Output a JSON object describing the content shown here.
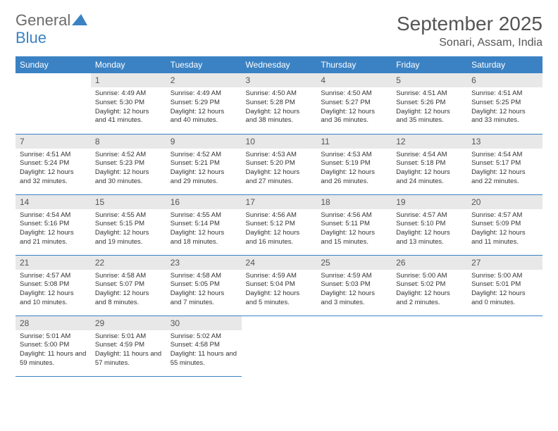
{
  "logo": {
    "general": "General",
    "blue": "Blue"
  },
  "header": {
    "title": "September 2025",
    "location": "Sonari, Assam, India"
  },
  "colors": {
    "accent": "#3b82c4",
    "daynum_bg": "#e8e8e8",
    "text": "#333333"
  },
  "weekdays": [
    "Sunday",
    "Monday",
    "Tuesday",
    "Wednesday",
    "Thursday",
    "Friday",
    "Saturday"
  ],
  "grid": {
    "rows": 5,
    "cols": 7,
    "start_weekday": 1,
    "days_in_month": 30
  },
  "days": {
    "1": {
      "sunrise": "4:49 AM",
      "sunset": "5:30 PM",
      "daylight": "12 hours and 41 minutes."
    },
    "2": {
      "sunrise": "4:49 AM",
      "sunset": "5:29 PM",
      "daylight": "12 hours and 40 minutes."
    },
    "3": {
      "sunrise": "4:50 AM",
      "sunset": "5:28 PM",
      "daylight": "12 hours and 38 minutes."
    },
    "4": {
      "sunrise": "4:50 AM",
      "sunset": "5:27 PM",
      "daylight": "12 hours and 36 minutes."
    },
    "5": {
      "sunrise": "4:51 AM",
      "sunset": "5:26 PM",
      "daylight": "12 hours and 35 minutes."
    },
    "6": {
      "sunrise": "4:51 AM",
      "sunset": "5:25 PM",
      "daylight": "12 hours and 33 minutes."
    },
    "7": {
      "sunrise": "4:51 AM",
      "sunset": "5:24 PM",
      "daylight": "12 hours and 32 minutes."
    },
    "8": {
      "sunrise": "4:52 AM",
      "sunset": "5:23 PM",
      "daylight": "12 hours and 30 minutes."
    },
    "9": {
      "sunrise": "4:52 AM",
      "sunset": "5:21 PM",
      "daylight": "12 hours and 29 minutes."
    },
    "10": {
      "sunrise": "4:53 AM",
      "sunset": "5:20 PM",
      "daylight": "12 hours and 27 minutes."
    },
    "11": {
      "sunrise": "4:53 AM",
      "sunset": "5:19 PM",
      "daylight": "12 hours and 26 minutes."
    },
    "12": {
      "sunrise": "4:54 AM",
      "sunset": "5:18 PM",
      "daylight": "12 hours and 24 minutes."
    },
    "13": {
      "sunrise": "4:54 AM",
      "sunset": "5:17 PM",
      "daylight": "12 hours and 22 minutes."
    },
    "14": {
      "sunrise": "4:54 AM",
      "sunset": "5:16 PM",
      "daylight": "12 hours and 21 minutes."
    },
    "15": {
      "sunrise": "4:55 AM",
      "sunset": "5:15 PM",
      "daylight": "12 hours and 19 minutes."
    },
    "16": {
      "sunrise": "4:55 AM",
      "sunset": "5:14 PM",
      "daylight": "12 hours and 18 minutes."
    },
    "17": {
      "sunrise": "4:56 AM",
      "sunset": "5:12 PM",
      "daylight": "12 hours and 16 minutes."
    },
    "18": {
      "sunrise": "4:56 AM",
      "sunset": "5:11 PM",
      "daylight": "12 hours and 15 minutes."
    },
    "19": {
      "sunrise": "4:57 AM",
      "sunset": "5:10 PM",
      "daylight": "12 hours and 13 minutes."
    },
    "20": {
      "sunrise": "4:57 AM",
      "sunset": "5:09 PM",
      "daylight": "12 hours and 11 minutes."
    },
    "21": {
      "sunrise": "4:57 AM",
      "sunset": "5:08 PM",
      "daylight": "12 hours and 10 minutes."
    },
    "22": {
      "sunrise": "4:58 AM",
      "sunset": "5:07 PM",
      "daylight": "12 hours and 8 minutes."
    },
    "23": {
      "sunrise": "4:58 AM",
      "sunset": "5:05 PM",
      "daylight": "12 hours and 7 minutes."
    },
    "24": {
      "sunrise": "4:59 AM",
      "sunset": "5:04 PM",
      "daylight": "12 hours and 5 minutes."
    },
    "25": {
      "sunrise": "4:59 AM",
      "sunset": "5:03 PM",
      "daylight": "12 hours and 3 minutes."
    },
    "26": {
      "sunrise": "5:00 AM",
      "sunset": "5:02 PM",
      "daylight": "12 hours and 2 minutes."
    },
    "27": {
      "sunrise": "5:00 AM",
      "sunset": "5:01 PM",
      "daylight": "12 hours and 0 minutes."
    },
    "28": {
      "sunrise": "5:01 AM",
      "sunset": "5:00 PM",
      "daylight": "11 hours and 59 minutes."
    },
    "29": {
      "sunrise": "5:01 AM",
      "sunset": "4:59 PM",
      "daylight": "11 hours and 57 minutes."
    },
    "30": {
      "sunrise": "5:02 AM",
      "sunset": "4:58 PM",
      "daylight": "11 hours and 55 minutes."
    }
  },
  "labels": {
    "sunrise": "Sunrise:",
    "sunset": "Sunset:",
    "daylight": "Daylight:"
  }
}
